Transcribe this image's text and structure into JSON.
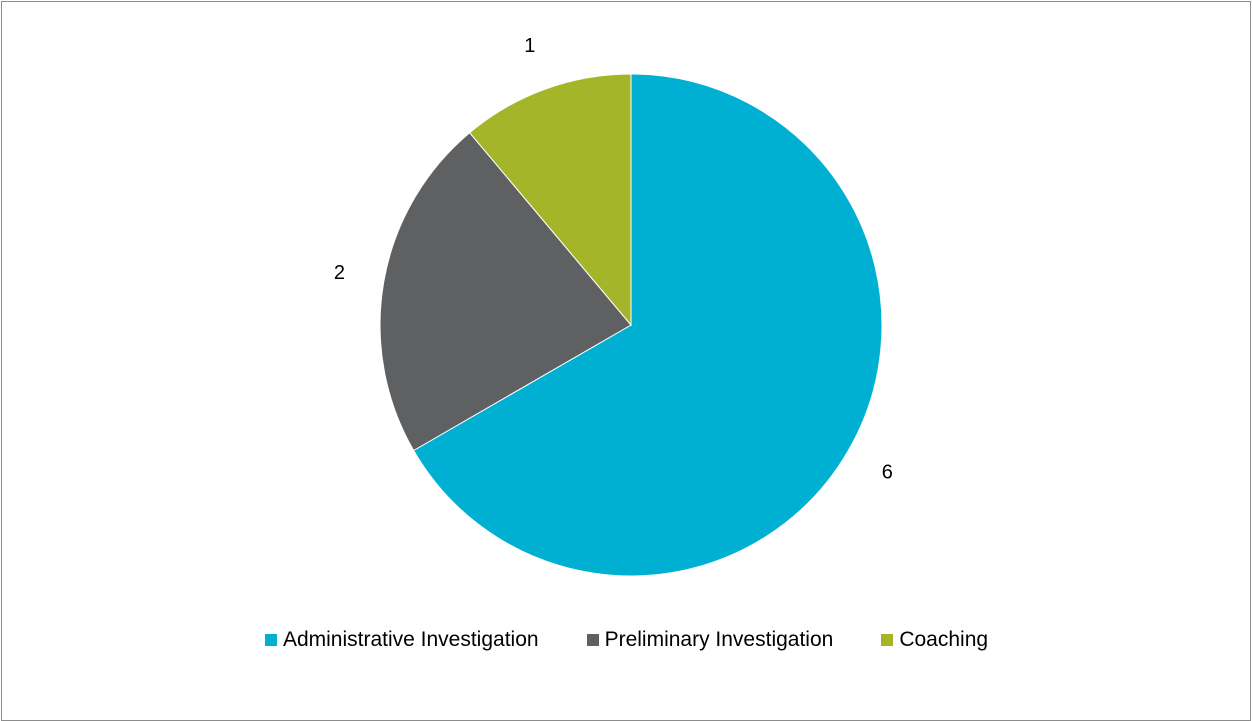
{
  "chart_data": {
    "type": "pie",
    "categories": [
      "Administrative Investigation",
      "Preliminary Investigation",
      "Coaching"
    ],
    "values": [
      6,
      2,
      1
    ],
    "labels": [
      "6",
      "2",
      "1"
    ],
    "colors": [
      "#00b0d3",
      "#5f6062",
      "#a5b52a"
    ],
    "start_angle_deg": 0,
    "direction": "clockwise",
    "legend_position": "bottom"
  }
}
